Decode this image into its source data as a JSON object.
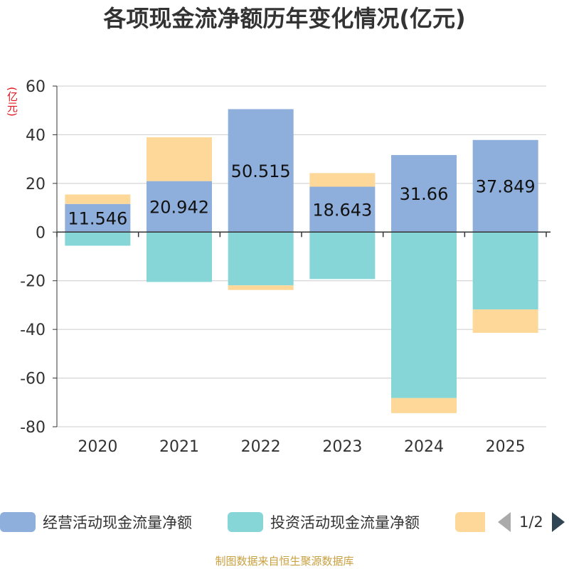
{
  "chart_data": {
    "type": "bar",
    "stacked": true,
    "title": "各项现金流净额历年变化情况(亿元)",
    "ylabel": "(亿元)",
    "categories": [
      "2020",
      "2021",
      "2022",
      "2023",
      "2024",
      "2025"
    ],
    "ylim": [
      -80,
      60
    ],
    "yticks": [
      60,
      40,
      20,
      0,
      -20,
      -40,
      -60,
      -80
    ],
    "series": [
      {
        "name": "经营活动现金流量净额",
        "color": "#8eaedb",
        "values": [
          11.546,
          20.942,
          50.515,
          18.643,
          31.66,
          37.849
        ],
        "show_labels": true
      },
      {
        "name": "投资活动现金流量净额",
        "color": "#86d6d8",
        "values": [
          -5.6,
          -20.5,
          -21.9,
          -19.3,
          -68.2,
          -31.8
        ],
        "show_labels": false
      },
      {
        "name": "",
        "color": "#fdd899",
        "values": [
          3.9,
          18.0,
          -1.9,
          5.6,
          -6.2,
          -9.6
        ],
        "show_labels": false
      }
    ],
    "legend": {
      "position": "bottom",
      "page": "1/2"
    },
    "grid": true
  },
  "source": "制图数据来自恒生聚源数据库"
}
